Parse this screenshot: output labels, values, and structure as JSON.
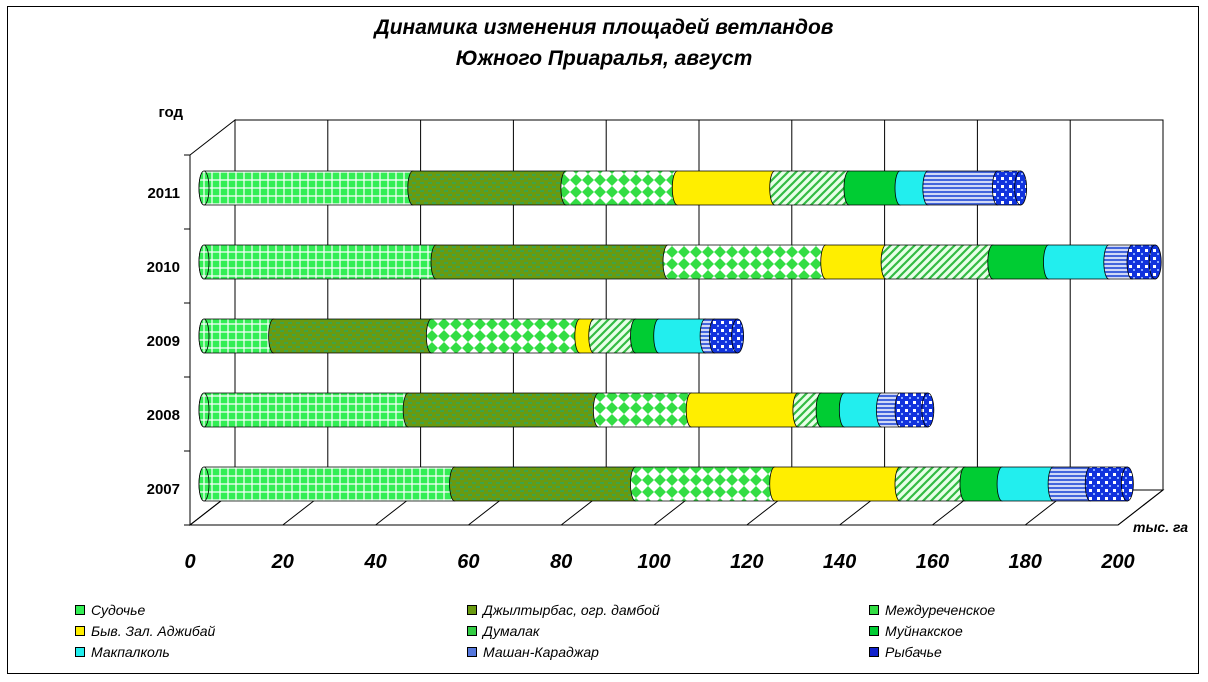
{
  "chart_data": {
    "type": "bar",
    "orientation": "horizontal",
    "stacked": true,
    "three_d": true,
    "title": "Динамика изменения площадей ветландов",
    "subtitle": "Южного Приаралья, август",
    "ylabel": "год",
    "xlabel": "тыс. га",
    "xlim": [
      0,
      200
    ],
    "xticks": [
      "0",
      "20",
      "40",
      "60",
      "80",
      "100",
      "120",
      "140",
      "160",
      "180",
      "200"
    ],
    "categories": [
      "2011",
      "2010",
      "2009",
      "2008",
      "2007"
    ],
    "grid": true,
    "legend_position": "bottom",
    "series": [
      {
        "name": "Судочье",
        "color": "#33ee55",
        "values": [
          45,
          50,
          15,
          44,
          54
        ]
      },
      {
        "name": "Джылтырбас, огр. дамбой",
        "color": "#6a9a10",
        "values": [
          33,
          50,
          34,
          41,
          39
        ]
      },
      {
        "name": "Междуреченское",
        "color": "#33dd44",
        "values": [
          24,
          34,
          32,
          20,
          30
        ]
      },
      {
        "name": "Быв. Зал. Аджибай",
        "color": "#ffee00",
        "values": [
          21,
          13,
          3,
          23,
          27
        ]
      },
      {
        "name": "Думалак",
        "color": "#33cc44",
        "values": [
          16,
          23,
          9,
          5,
          14
        ]
      },
      {
        "name": "Муйнакское",
        "color": "#00cc33",
        "values": [
          11,
          12,
          5,
          5,
          8
        ]
      },
      {
        "name": "Макпалколь",
        "color": "#22eeee",
        "values": [
          6,
          13,
          10,
          8,
          11
        ]
      },
      {
        "name": "Машан-Караджар",
        "color": "#5577dd",
        "values": [
          15,
          5,
          2,
          4,
          8
        ]
      },
      {
        "name": "Рыбачье",
        "color": "#1122cc",
        "values": [
          5,
          5,
          5,
          6,
          8
        ]
      }
    ]
  }
}
